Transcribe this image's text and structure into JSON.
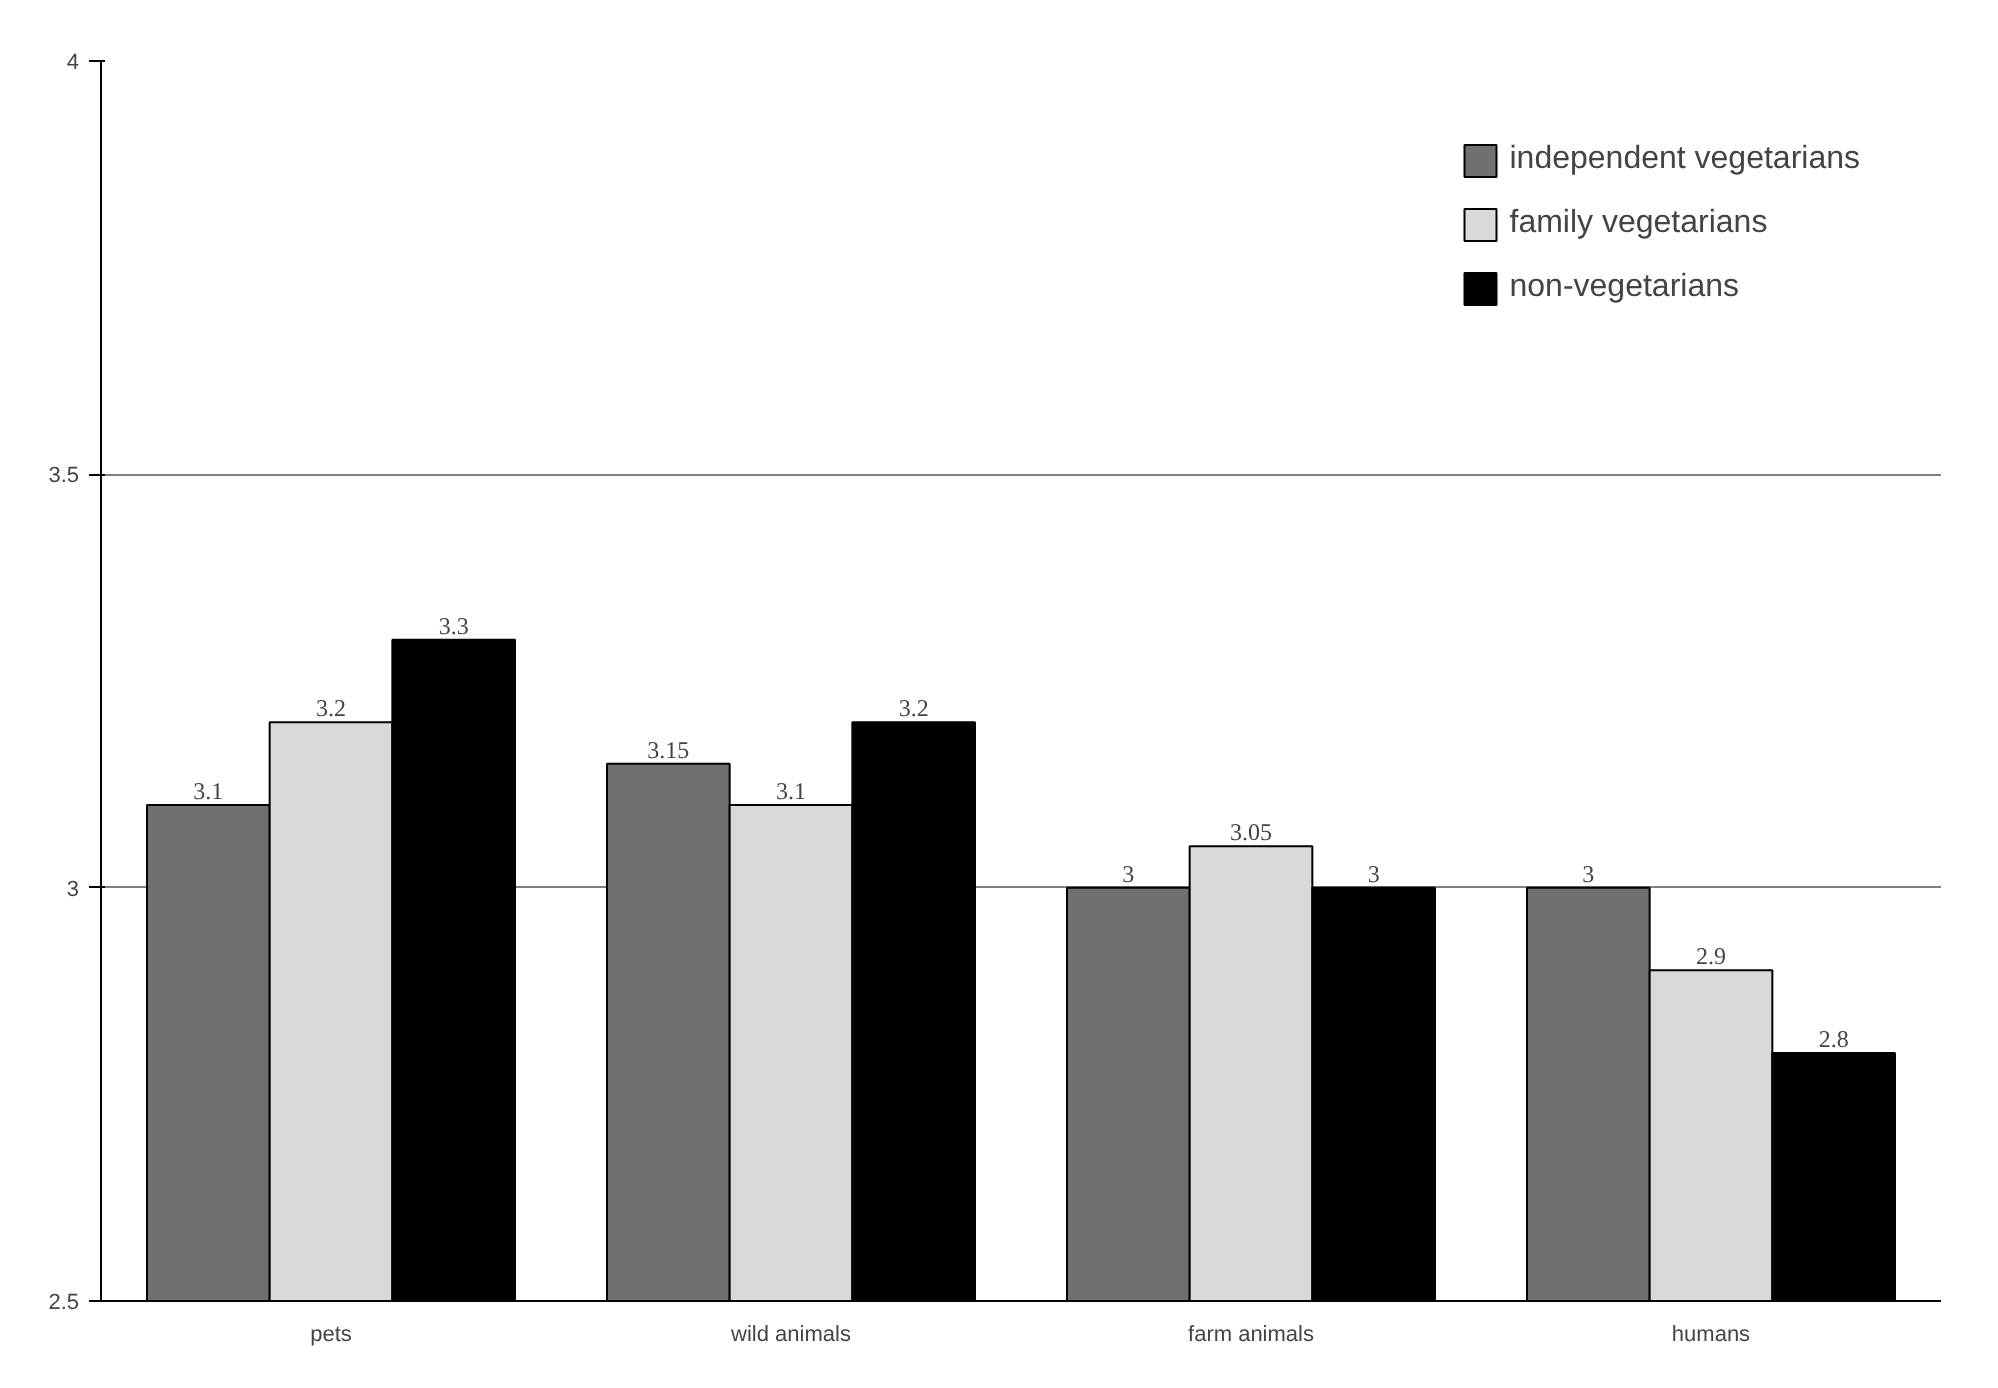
{
  "chart_data": {
    "type": "bar",
    "categories": [
      "pets",
      "wild animals",
      "farm animals",
      "humans"
    ],
    "series": [
      {
        "name": "independent vegetarians",
        "color": "#707070",
        "values": [
          3.1,
          3.15,
          3,
          3
        ]
      },
      {
        "name": "family vegetarians",
        "color": "#d9d9d9",
        "values": [
          3.2,
          3.1,
          3.05,
          2.9
        ]
      },
      {
        "name": "non-vegetarians",
        "color": "#000000",
        "values": [
          3.3,
          3.2,
          3,
          2.8
        ]
      }
    ],
    "ylim": [
      2.5,
      4
    ],
    "yticks": [
      2.5,
      3,
      3.5,
      4
    ],
    "grid": "y",
    "legend": "top right",
    "data_labels": true
  }
}
